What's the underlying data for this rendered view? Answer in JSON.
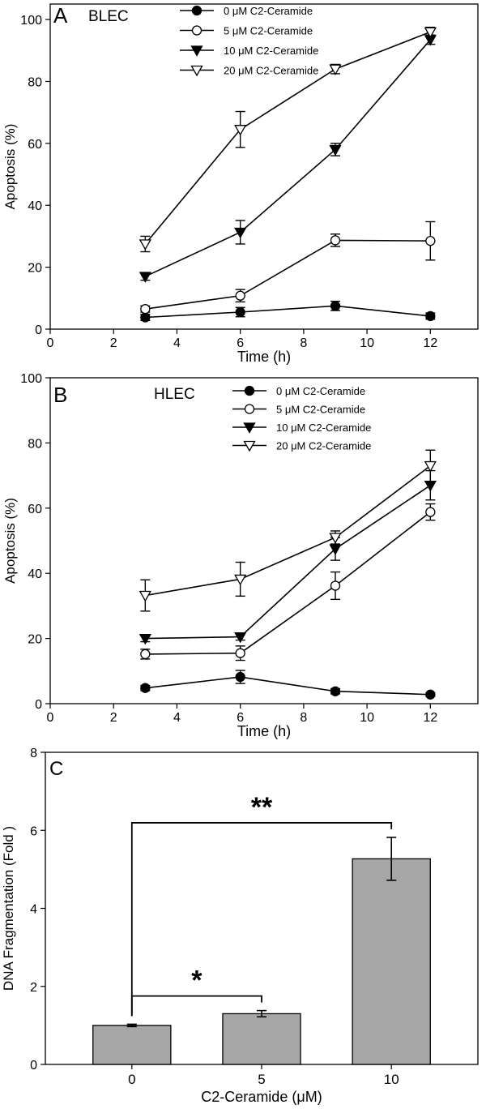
{
  "chart_data": [
    {
      "type": "line",
      "panel_letter": "A",
      "title": "BLEC",
      "xlabel": "Time (h)",
      "ylabel": "Apoptosis (%)",
      "xlim": [
        0,
        13.5
      ],
      "ylim": [
        0,
        105
      ],
      "xticks": [
        0,
        2,
        4,
        6,
        8,
        10,
        12
      ],
      "yticks": [
        0,
        20,
        40,
        60,
        80,
        100
      ],
      "x": [
        3,
        6,
        9,
        12
      ],
      "legend_position": "top-center",
      "series": [
        {
          "name": "0 μM C2-Ceramide",
          "marker": "filled-circle",
          "values": [
            3.8,
            5.5,
            7.5,
            4.2
          ],
          "errors": [
            1.0,
            1.5,
            1.5,
            1.0
          ]
        },
        {
          "name": "5 μM C2-Ceramide",
          "marker": "open-circle",
          "values": [
            6.5,
            10.8,
            28.7,
            28.5
          ],
          "errors": [
            1.0,
            2.0,
            2.0,
            6.2
          ]
        },
        {
          "name": "10 μM C2-Ceramide",
          "marker": "filled-triangle-down",
          "values": [
            17.0,
            31.3,
            58.0,
            93.5
          ],
          "errors": [
            1.2,
            3.8,
            2.0,
            1.5
          ]
        },
        {
          "name": "20 μM C2-Ceramide",
          "marker": "open-triangle-down",
          "values": [
            27.5,
            64.5,
            84.0,
            96.0
          ],
          "errors": [
            2.5,
            5.8,
            1.5,
            1.5
          ]
        }
      ]
    },
    {
      "type": "line",
      "panel_letter": "B",
      "title": "HLEC",
      "xlabel": "Time (h)",
      "ylabel": "Apoptosis (%)",
      "xlim": [
        0,
        13.5
      ],
      "ylim": [
        0,
        100
      ],
      "xticks": [
        0,
        2,
        4,
        6,
        8,
        10,
        12
      ],
      "yticks": [
        0,
        20,
        40,
        60,
        80,
        100
      ],
      "x": [
        3,
        6,
        9,
        12
      ],
      "legend_position": "top-right",
      "series": [
        {
          "name": "0 μM C2-Ceramide",
          "marker": "filled-circle",
          "values": [
            4.8,
            8.2,
            3.8,
            2.8
          ],
          "errors": [
            0.8,
            2.0,
            0.8,
            0.5
          ]
        },
        {
          "name": "5 μM C2-Ceramide",
          "marker": "open-circle",
          "values": [
            15.2,
            15.5,
            36.2,
            58.8
          ],
          "errors": [
            1.5,
            2.2,
            4.2,
            2.5
          ]
        },
        {
          "name": "10 μM C2-Ceramide",
          "marker": "filled-triangle-down",
          "values": [
            20.0,
            20.5,
            47.5,
            67.0
          ],
          "errors": [
            1.0,
            1.0,
            3.5,
            4.5
          ]
        },
        {
          "name": "20 μM C2-Ceramide",
          "marker": "open-triangle-down",
          "values": [
            33.2,
            38.2,
            51.0,
            73.0
          ],
          "errors": [
            4.8,
            5.2,
            2.0,
            4.8
          ]
        }
      ]
    },
    {
      "type": "bar",
      "panel_letter": "C",
      "xlabel": "C2-Ceramide (μM)",
      "ylabel": "DNA Fragmentation (Fold )",
      "ylim": [
        0,
        8
      ],
      "yticks": [
        0,
        2,
        4,
        6,
        8
      ],
      "categories": [
        "0",
        "5",
        "10"
      ],
      "values": [
        1.0,
        1.3,
        5.27
      ],
      "errors": [
        0.03,
        0.08,
        0.55
      ],
      "bar_color": "#a6a6a6",
      "significance": [
        {
          "from": "0",
          "to": "5",
          "label": "*"
        },
        {
          "from": "0",
          "to": "10",
          "label": "**"
        }
      ]
    }
  ]
}
